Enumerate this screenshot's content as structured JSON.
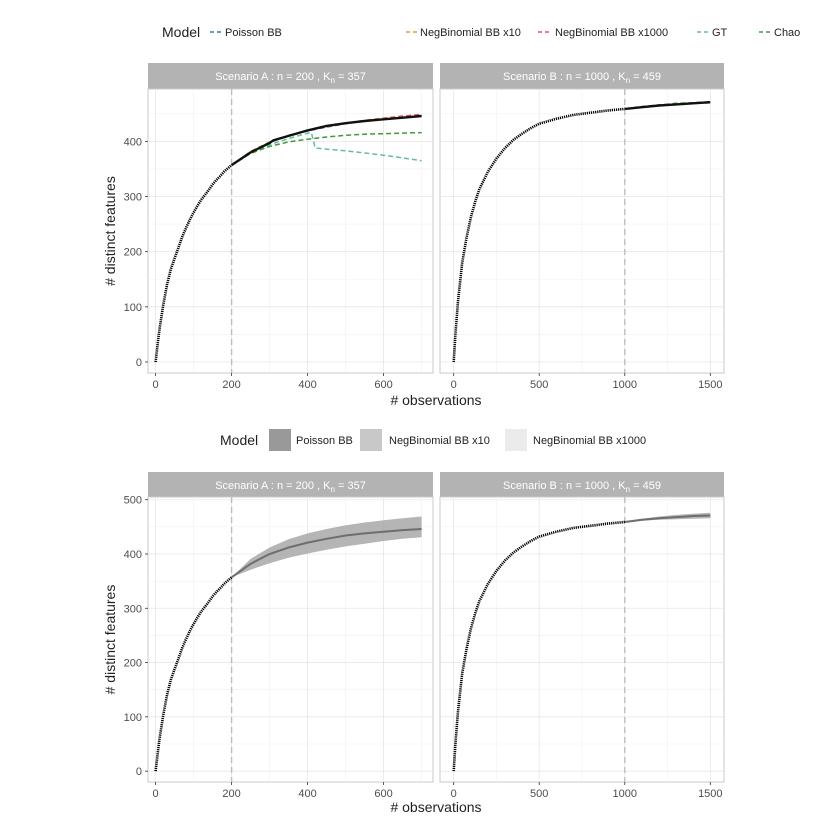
{
  "chart_data": [
    {
      "type": "line",
      "legend": {
        "title": "Model",
        "placement": "top",
        "entries": [
          {
            "name": "Poisson BB",
            "color": "#4a6fb5",
            "style": "dashed"
          },
          {
            "name": "NegBinomial BB x10",
            "color": "#e69a3c",
            "style": "dashed"
          },
          {
            "name": "NegBinomial BB x1000",
            "color": "#e0574a",
            "style": "dashed"
          },
          {
            "name": "GT",
            "color": "#5fbfa0",
            "style": "dashed"
          },
          {
            "name": "Chao",
            "color": "#3d9a3d",
            "style": "dashed"
          }
        ]
      },
      "xlabel": "# observations",
      "ylabel": "# distinct features",
      "grid": true,
      "panels": [
        {
          "strip_prefix": "Scenario A :  n = 200 , K",
          "strip_sub": "n",
          "strip_suffix": " = 357",
          "n": 200,
          "xlim": [
            -20,
            730
          ],
          "ylim": [
            -20,
            495
          ],
          "xticks": [
            0,
            200,
            400,
            600
          ],
          "yticks": [
            0,
            100,
            200,
            300,
            400
          ],
          "vline": 200,
          "observed": {
            "x": [
              0,
              5,
              10,
              20,
              30,
              40,
              50,
              60,
              70,
              80,
              90,
              100,
              110,
              120,
              130,
              140,
              150,
              160,
              170,
              180,
              190,
              200
            ],
            "y": [
              0,
              30,
              58,
              103,
              140,
              168,
              188,
              207,
              227,
              243,
              258,
              271,
              283,
              294,
              303,
              312,
              322,
              330,
              337,
              345,
              351,
              357
            ]
          },
          "series": [
            {
              "name": "Poisson BB",
              "x": [
                200,
                250,
                300,
                350,
                400,
                450,
                500,
                550,
                600,
                650,
                700
              ],
              "y": [
                357,
                381,
                398,
                410,
                419,
                426,
                432,
                437,
                441,
                444,
                447
              ]
            },
            {
              "name": "NegBinomial BB x10",
              "x": [
                200,
                250,
                300,
                350,
                400,
                450,
                500,
                550,
                600,
                650,
                700
              ],
              "y": [
                357,
                382,
                399,
                411,
                420,
                427,
                433,
                438,
                442,
                445,
                448
              ]
            },
            {
              "name": "NegBinomial BB x1000",
              "x": [
                200,
                250,
                300,
                350,
                400,
                450,
                500,
                550,
                600,
                650,
                700
              ],
              "y": [
                357,
                381,
                398,
                411,
                420,
                427,
                433,
                438,
                442,
                446,
                449
              ]
            },
            {
              "name": "GT",
              "x": [
                200,
                250,
                300,
                350,
                400,
                410,
                420,
                450,
                500,
                550,
                600,
                650,
                700
              ],
              "y": [
                357,
                378,
                394,
                405,
                415,
                416,
                388,
                386,
                383,
                379,
                375,
                370,
                365
              ]
            },
            {
              "name": "Chao",
              "x": [
                200,
                250,
                300,
                350,
                400,
                450,
                500,
                550,
                600,
                650,
                700
              ],
              "y": [
                357,
                378,
                391,
                399,
                404,
                408,
                411,
                413,
                414,
                415,
                416
              ]
            }
          ],
          "truth": {
            "x": [
              200,
              250,
              300,
              310,
              350,
              400,
              450,
              500,
              550,
              600,
              650,
              700
            ],
            "y": [
              357,
              380,
              397,
              402,
              410,
              420,
              428,
              433,
              437,
              440,
              443,
              446
            ]
          }
        },
        {
          "strip_prefix": "Scenario B :  n = 1000 , K",
          "strip_sub": "n",
          "strip_suffix": " = 459",
          "n": 1000,
          "xlim": [
            -80,
            1580
          ],
          "ylim": [
            -20,
            495
          ],
          "xticks": [
            0,
            500,
            1000,
            1500
          ],
          "yticks": [],
          "vline": 1000,
          "observed": {
            "x": [
              0,
              10,
              25,
              50,
              75,
              100,
              125,
              150,
              200,
              250,
              300,
              350,
              400,
              450,
              500,
              600,
              700,
              800,
              900,
              1000
            ],
            "y": [
              0,
              50,
              110,
              180,
              225,
              262,
              290,
              313,
              345,
              369,
              388,
              403,
              414,
              424,
              432,
              441,
              448,
              452,
              456,
              459
            ]
          },
          "series": [
            {
              "name": "Poisson BB",
              "x": [
                1000,
                1100,
                1200,
                1300,
                1400,
                1500
              ],
              "y": [
                459,
                462,
                465,
                467,
                469,
                470
              ]
            },
            {
              "name": "NegBinomial BB x10",
              "x": [
                1000,
                1100,
                1200,
                1300,
                1400,
                1500
              ],
              "y": [
                459,
                463,
                466,
                468,
                470,
                471
              ]
            },
            {
              "name": "NegBinomial BB x1000",
              "x": [
                1000,
                1100,
                1200,
                1300,
                1400,
                1500
              ],
              "y": [
                459,
                463,
                466,
                468,
                470,
                471
              ]
            },
            {
              "name": "GT",
              "x": [
                1000,
                1100,
                1200,
                1300,
                1400,
                1500
              ],
              "y": [
                459,
                463,
                466,
                468,
                470,
                471
              ]
            },
            {
              "name": "Chao",
              "x": [
                1000,
                1100,
                1200,
                1300,
                1400,
                1500
              ],
              "y": [
                459,
                463,
                466,
                469,
                470,
                472
              ]
            }
          ],
          "truth": {
            "x": [
              1000,
              1100,
              1200,
              1300,
              1400,
              1500
            ],
            "y": [
              459,
              462,
              465,
              467,
              469,
              471
            ]
          }
        }
      ]
    },
    {
      "type": "area",
      "legend": {
        "title": "Model",
        "placement": "top",
        "entries": [
          {
            "name": "Poisson BB",
            "color": "#999999"
          },
          {
            "name": "NegBinomial BB x10",
            "color": "#c8c8c8"
          },
          {
            "name": "NegBinomial BB x1000",
            "color": "#ebebeb"
          }
        ]
      },
      "xlabel": "# observations",
      "ylabel": "# distinct features",
      "grid": true,
      "panels": [
        {
          "strip_prefix": "Scenario A :  n = 200 , K",
          "strip_sub": "n",
          "strip_suffix": " = 357",
          "n": 200,
          "xlim": [
            -20,
            730
          ],
          "ylim": [
            -20,
            505
          ],
          "xticks": [
            0,
            200,
            400,
            600
          ],
          "yticks": [
            0,
            100,
            200,
            300,
            400,
            500
          ],
          "vline": 200,
          "observed": {
            "x": [
              0,
              5,
              10,
              20,
              30,
              40,
              50,
              60,
              70,
              80,
              90,
              100,
              110,
              120,
              130,
              140,
              150,
              160,
              170,
              180,
              190,
              200
            ],
            "y": [
              0,
              30,
              58,
              103,
              140,
              168,
              188,
              207,
              227,
              243,
              258,
              271,
              283,
              294,
              303,
              312,
              322,
              330,
              337,
              345,
              351,
              357
            ]
          },
          "band": {
            "x": [
              200,
              250,
              300,
              350,
              400,
              450,
              500,
              550,
              600,
              650,
              700
            ],
            "lower": [
              357,
              371,
              383,
              393,
              401,
              408,
              414,
              419,
              424,
              428,
              431
            ],
            "upper": [
              357,
              391,
              412,
              427,
              438,
              446,
              453,
              458,
              462,
              466,
              469
            ]
          },
          "mean": {
            "x": [
              200,
              250,
              300,
              350,
              400,
              450,
              500,
              550,
              600,
              650,
              700
            ],
            "y": [
              357,
              382,
              400,
              412,
              421,
              428,
              434,
              438,
              441,
              444,
              446
            ]
          }
        },
        {
          "strip_prefix": "Scenario B :  n = 1000 , K",
          "strip_sub": "n",
          "strip_suffix": " = 459",
          "n": 1000,
          "xlim": [
            -80,
            1580
          ],
          "ylim": [
            -20,
            505
          ],
          "xticks": [
            0,
            500,
            1000,
            1500
          ],
          "yticks": [],
          "vline": 1000,
          "observed": {
            "x": [
              0,
              10,
              25,
              50,
              75,
              100,
              125,
              150,
              200,
              250,
              300,
              350,
              400,
              450,
              500,
              600,
              700,
              800,
              900,
              1000
            ],
            "y": [
              0,
              50,
              110,
              180,
              225,
              262,
              290,
              313,
              345,
              369,
              388,
              403,
              414,
              424,
              432,
              441,
              448,
              452,
              456,
              459
            ]
          },
          "band": {
            "x": [
              1000,
              1100,
              1200,
              1300,
              1400,
              1500
            ],
            "lower": [
              459,
              461,
              463,
              464,
              465,
              466
            ],
            "upper": [
              459,
              465,
              469,
              472,
              474,
              476
            ]
          },
          "mean": {
            "x": [
              1000,
              1100,
              1200,
              1300,
              1400,
              1500
            ],
            "y": [
              459,
              463,
              466,
              468,
              470,
              471
            ]
          }
        }
      ]
    }
  ]
}
